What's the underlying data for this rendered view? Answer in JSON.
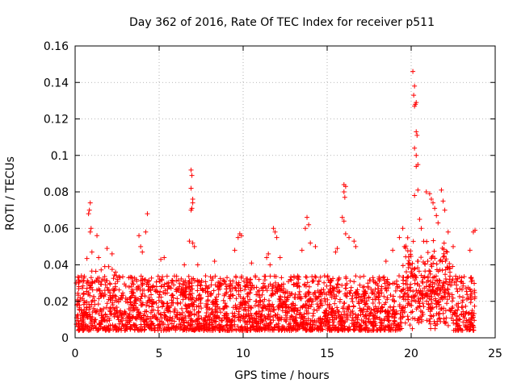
{
  "chart_data": {
    "type": "scatter",
    "title": "Day 362 of 2016, Rate Of TEC Index for receiver p511",
    "xlabel": "GPS time / hours",
    "ylabel": "ROTI / TECUs",
    "xlim": [
      0,
      25
    ],
    "ylim": [
      0,
      0.16
    ],
    "x_ticks": [
      0,
      5,
      10,
      15,
      20,
      25
    ],
    "x_tick_labels": [
      "0",
      "5",
      "10",
      "15",
      "20",
      "25"
    ],
    "y_ticks": [
      0,
      0.02,
      0.04,
      0.06,
      0.08,
      0.1,
      0.12,
      0.14,
      0.16
    ],
    "y_tick_labels": [
      "0",
      "0.02",
      "0.04",
      "0.06",
      "0.08",
      "0.1",
      "0.12",
      "0.14",
      "0.16"
    ],
    "grid": true,
    "marker": "+",
    "series": [
      {
        "name": "ROTI",
        "color": "#ff0000",
        "sampling_note": "dense cloud of points every ~30s from 0 to ~23.8 h, mostly 0.005-0.035",
        "points": [
          [
            0.9,
            0.074
          ],
          [
            0.85,
            0.07
          ],
          [
            0.8,
            0.068
          ],
          [
            0.95,
            0.06
          ],
          [
            0.9,
            0.058
          ],
          [
            1.3,
            0.056
          ],
          [
            1.0,
            0.047
          ],
          [
            1.4,
            0.044
          ],
          [
            1.9,
            0.049
          ],
          [
            2.0,
            0.039
          ],
          [
            2.2,
            0.046
          ],
          [
            3.8,
            0.056
          ],
          [
            3.9,
            0.05
          ],
          [
            4.3,
            0.068
          ],
          [
            4.2,
            0.058
          ],
          [
            4.0,
            0.047
          ],
          [
            5.1,
            0.043
          ],
          [
            5.3,
            0.044
          ],
          [
            6.5,
            0.04
          ],
          [
            6.9,
            0.092
          ],
          [
            6.95,
            0.089
          ],
          [
            6.9,
            0.082
          ],
          [
            7.0,
            0.076
          ],
          [
            7.0,
            0.074
          ],
          [
            6.95,
            0.071
          ],
          [
            6.9,
            0.07
          ],
          [
            6.8,
            0.053
          ],
          [
            7.0,
            0.052
          ],
          [
            7.1,
            0.05
          ],
          [
            7.3,
            0.04
          ],
          [
            8.3,
            0.042
          ],
          [
            9.5,
            0.048
          ],
          [
            9.8,
            0.057
          ],
          [
            9.7,
            0.055
          ],
          [
            9.9,
            0.056
          ],
          [
            10.5,
            0.041
          ],
          [
            11.4,
            0.044
          ],
          [
            11.5,
            0.046
          ],
          [
            11.6,
            0.04
          ],
          [
            11.8,
            0.06
          ],
          [
            11.9,
            0.058
          ],
          [
            12.0,
            0.055
          ],
          [
            12.2,
            0.044
          ],
          [
            13.5,
            0.048
          ],
          [
            13.7,
            0.06
          ],
          [
            13.8,
            0.066
          ],
          [
            13.9,
            0.062
          ],
          [
            14.0,
            0.052
          ],
          [
            14.3,
            0.05
          ],
          [
            15.6,
            0.049
          ],
          [
            15.5,
            0.047
          ],
          [
            16.0,
            0.084
          ],
          [
            16.1,
            0.083
          ],
          [
            16.0,
            0.08
          ],
          [
            16.05,
            0.077
          ],
          [
            15.9,
            0.066
          ],
          [
            16.0,
            0.064
          ],
          [
            16.1,
            0.057
          ],
          [
            16.3,
            0.055
          ],
          [
            16.6,
            0.053
          ],
          [
            16.7,
            0.05
          ],
          [
            18.5,
            0.042
          ],
          [
            18.9,
            0.048
          ],
          [
            19.3,
            0.055
          ],
          [
            19.5,
            0.06
          ],
          [
            19.6,
            0.05
          ],
          [
            20.1,
            0.146
          ],
          [
            20.2,
            0.138
          ],
          [
            20.15,
            0.133
          ],
          [
            20.3,
            0.129
          ],
          [
            20.25,
            0.128
          ],
          [
            20.2,
            0.127
          ],
          [
            20.3,
            0.113
          ],
          [
            20.35,
            0.111
          ],
          [
            20.2,
            0.104
          ],
          [
            20.3,
            0.1
          ],
          [
            20.4,
            0.095
          ],
          [
            20.3,
            0.094
          ],
          [
            20.4,
            0.081
          ],
          [
            20.2,
            0.078
          ],
          [
            20.5,
            0.065
          ],
          [
            20.6,
            0.06
          ],
          [
            20.9,
            0.08
          ],
          [
            21.1,
            0.079
          ],
          [
            21.2,
            0.076
          ],
          [
            21.3,
            0.074
          ],
          [
            21.4,
            0.071
          ],
          [
            21.5,
            0.067
          ],
          [
            21.6,
            0.063
          ],
          [
            21.8,
            0.081
          ],
          [
            21.9,
            0.075
          ],
          [
            22.0,
            0.07
          ],
          [
            22.2,
            0.058
          ],
          [
            22.5,
            0.05
          ],
          [
            23.5,
            0.048
          ],
          [
            23.7,
            0.058
          ],
          [
            23.8,
            0.059
          ],
          [
            0.1,
            0.018
          ],
          [
            0.3,
            0.022
          ],
          [
            0.5,
            0.012
          ],
          [
            0.7,
            0.03
          ],
          [
            1.1,
            0.016
          ],
          [
            1.5,
            0.024
          ],
          [
            1.8,
            0.013
          ],
          [
            2.4,
            0.028
          ],
          [
            2.7,
            0.009
          ],
          [
            3.1,
            0.021
          ],
          [
            3.4,
            0.03
          ],
          [
            3.7,
            0.015
          ],
          [
            4.5,
            0.026
          ],
          [
            4.8,
            0.011
          ],
          [
            5.5,
            0.019
          ],
          [
            5.8,
            0.031
          ],
          [
            6.1,
            0.014
          ],
          [
            6.4,
            0.025
          ],
          [
            7.5,
            0.022
          ],
          [
            7.8,
            0.012
          ],
          [
            8.1,
            0.029
          ],
          [
            8.6,
            0.016
          ],
          [
            8.9,
            0.024
          ],
          [
            9.2,
            0.01
          ],
          [
            10.1,
            0.02
          ],
          [
            10.4,
            0.03
          ],
          [
            10.8,
            0.013
          ],
          [
            11.1,
            0.027
          ],
          [
            12.5,
            0.018
          ],
          [
            12.8,
            0.032
          ],
          [
            13.1,
            0.011
          ],
          [
            14.6,
            0.024
          ],
          [
            14.9,
            0.015
          ],
          [
            15.2,
            0.031
          ],
          [
            16.9,
            0.019
          ],
          [
            17.2,
            0.028
          ],
          [
            17.5,
            0.012
          ],
          [
            17.8,
            0.024
          ],
          [
            18.2,
            0.016
          ],
          [
            19.0,
            0.03
          ],
          [
            19.8,
            0.021
          ],
          [
            20.7,
            0.033
          ],
          [
            21.0,
            0.026
          ],
          [
            22.4,
            0.029
          ],
          [
            22.7,
            0.018
          ],
          [
            23.0,
            0.031
          ],
          [
            23.3,
            0.014
          ],
          [
            23.6,
            0.024
          ]
        ]
      }
    ]
  }
}
